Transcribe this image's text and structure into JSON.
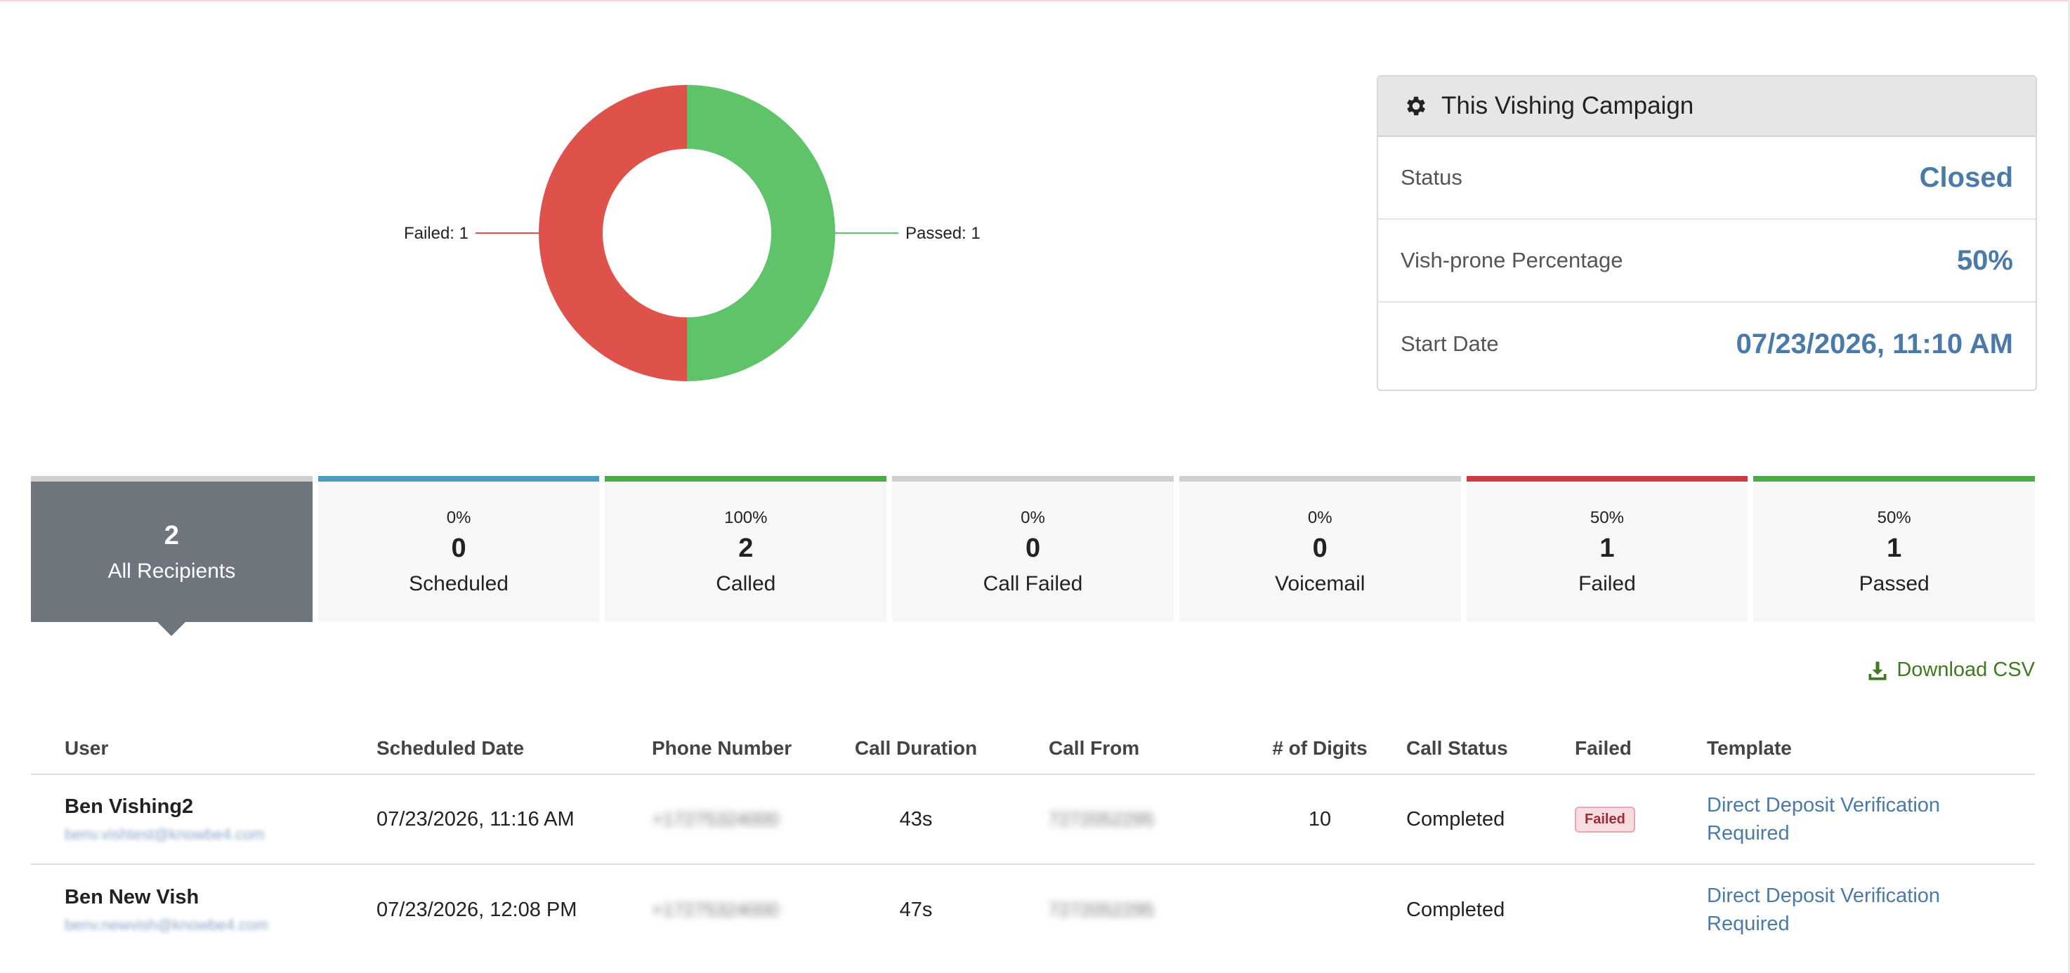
{
  "chart_data": {
    "type": "pie",
    "donut": true,
    "slices": [
      {
        "label": "Failed: 1",
        "value": 1,
        "color": "#df514b"
      },
      {
        "label": "Passed: 1",
        "value": 1,
        "color": "#5fc36a"
      }
    ]
  },
  "campaign": {
    "title": "This Vishing Campaign",
    "icon": "gear-icon",
    "rows": [
      {
        "label": "Status",
        "value": "Closed"
      },
      {
        "label": "Vish-prone Percentage",
        "value": "50%"
      },
      {
        "label": "Start Date",
        "value": "07/23/2026, 11:10 AM"
      }
    ]
  },
  "stats": [
    {
      "pct": "",
      "count": "2",
      "label": "All Recipients",
      "color": "#cfcfcf",
      "active": true
    },
    {
      "pct": "0%",
      "count": "0",
      "label": "Scheduled",
      "color": "#4b9fb8"
    },
    {
      "pct": "100%",
      "count": "2",
      "label": "Called",
      "color": "#4ea84b"
    },
    {
      "pct": "0%",
      "count": "0",
      "label": "Call Failed",
      "color": "#cfcfcf"
    },
    {
      "pct": "0%",
      "count": "0",
      "label": "Voicemail",
      "color": "#cfcfcf"
    },
    {
      "pct": "50%",
      "count": "1",
      "label": "Failed",
      "color": "#cc3b3d"
    },
    {
      "pct": "50%",
      "count": "1",
      "label": "Passed",
      "color": "#4ea84b"
    }
  ],
  "download_label": "Download CSV",
  "table": {
    "headers": [
      "User",
      "Scheduled Date",
      "Phone Number",
      "Call Duration",
      "Call From",
      "# of Digits",
      "Call Status",
      "Failed",
      "Template"
    ],
    "rows": [
      {
        "user": "Ben Vishing2",
        "email": "benv.vishtest@knowbe4.com",
        "date": "07/23/2026, 11:16 AM",
        "phone": "+17275324000",
        "duration": "43s",
        "from": "7272052295",
        "digits": "10",
        "status": "Completed",
        "failed": "Failed",
        "template": "Direct Deposit Verification Required"
      },
      {
        "user": "Ben New Vish",
        "email": "benv.newvish@knowbe4.com",
        "date": "07/23/2026, 12:08 PM",
        "phone": "+17275324000",
        "duration": "47s",
        "from": "7272052295",
        "digits": "",
        "status": "Completed",
        "failed": "",
        "template": "Direct Deposit Verification Required"
      }
    ]
  }
}
